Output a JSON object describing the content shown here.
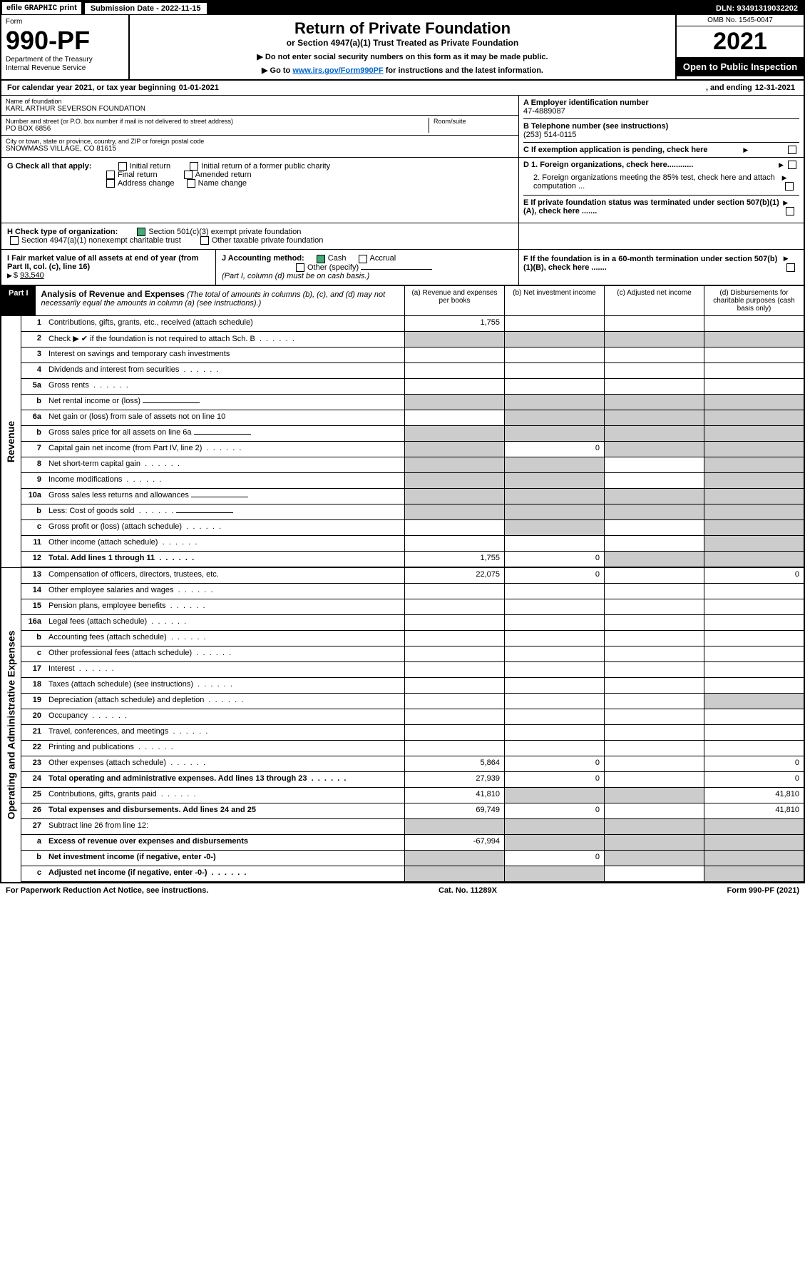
{
  "topbar": {
    "efile": "efile",
    "graphic": "GRAPHIC",
    "print": "print",
    "sub_label": "Submission Date - 2022-11-15",
    "dln": "DLN: 93491319032202"
  },
  "header": {
    "form_word": "Form",
    "form_num": "990-PF",
    "dept1": "Department of the Treasury",
    "dept2": "Internal Revenue Service",
    "title": "Return of Private Foundation",
    "subtitle": "or Section 4947(a)(1) Trust Treated as Private Foundation",
    "note1": "▶ Do not enter social security numbers on this form as it may be made public.",
    "note2_pre": "▶ Go to ",
    "note2_link": "www.irs.gov/Form990PF",
    "note2_post": " for instructions and the latest information.",
    "omb": "OMB No. 1545-0047",
    "year": "2021",
    "open": "Open to Public Inspection"
  },
  "cal": {
    "pre": "For calendar year 2021, or tax year beginning ",
    "begin": "01-01-2021",
    "mid": ", and ending ",
    "end": "12-31-2021"
  },
  "name": {
    "name_lab": "Name of foundation",
    "name_val": "KARL ARTHUR SEVERSON FOUNDATION",
    "addr_lab": "Number and street (or P.O. box number if mail is not delivered to street address)",
    "addr_val": "PO BOX 6856",
    "room_lab": "Room/suite",
    "city_lab": "City or town, state or province, country, and ZIP or foreign postal code",
    "city_val": "SNOWMASS VILLAGE, CO  81615",
    "a_lab": "A Employer identification number",
    "a_val": "47-4889087",
    "b_lab": "B Telephone number (see instructions)",
    "b_val": "(253) 514-0115",
    "c_lab": "C If exemption application is pending, check here"
  },
  "g": {
    "lab": "G Check all that apply:",
    "o1": "Initial return",
    "o2": "Initial return of a former public charity",
    "o3": "Final return",
    "o4": "Amended return",
    "o5": "Address change",
    "o6": "Name change",
    "d1": "D 1. Foreign organizations, check here............",
    "d2": "2. Foreign organizations meeting the 85% test, check here and attach computation ...",
    "e": "E  If private foundation status was terminated under section 507(b)(1)(A), check here ......."
  },
  "h": {
    "lab": "H Check type of organization:",
    "h1": "Section 501(c)(3) exempt private foundation",
    "h2": "Section 4947(a)(1) nonexempt charitable trust",
    "h3": "Other taxable private foundation"
  },
  "ijk": {
    "i_lab": "I Fair market value of all assets at end of year (from Part II, col. (c), line 16)",
    "i_val": "93,540",
    "j_lab": "J Accounting method:",
    "j1": "Cash",
    "j2": "Accrual",
    "j3": "Other (specify)",
    "j_note": "(Part I, column (d) must be on cash basis.)",
    "f": "F  If the foundation is in a 60-month termination under section 507(b)(1)(B), check here ......."
  },
  "part1": {
    "tab": "Part I",
    "title": "Analysis of Revenue and Expenses",
    "note": " (The total of amounts in columns (b), (c), and (d) may not necessarily equal the amounts in column (a) (see instructions).)",
    "col_a": "(a)  Revenue and expenses per books",
    "col_b": "(b)  Net investment income",
    "col_c": "(c)  Adjusted net income",
    "col_d": "(d)  Disbursements for charitable purposes (cash basis only)"
  },
  "sides": {
    "rev": "Revenue",
    "exp": "Operating and Administrative Expenses"
  },
  "rows": [
    {
      "n": "1",
      "t": "Contributions, gifts, grants, etc., received (attach schedule)",
      "a": "1,755",
      "b": "",
      "c": "",
      "d": "",
      "dg": true
    },
    {
      "n": "2",
      "t": "Check ▶ ✔ if the foundation is not required to attach Sch. B",
      "dots": true,
      "nocell": true
    },
    {
      "n": "3",
      "t": "Interest on savings and temporary cash investments"
    },
    {
      "n": "4",
      "t": "Dividends and interest from securities",
      "dots": true
    },
    {
      "n": "5a",
      "t": "Gross rents",
      "dots": true
    },
    {
      "n": "b",
      "t": "Net rental income or (loss)",
      "underfield": true,
      "bcg": true,
      "ccg": true,
      "dcg": true,
      "acg": true
    },
    {
      "n": "6a",
      "t": "Net gain or (loss) from sale of assets not on line 10",
      "bcg": true,
      "ccg": true,
      "dcg": true
    },
    {
      "n": "b",
      "t": "Gross sales price for all assets on line 6a",
      "underfield": true,
      "acg": true,
      "bcg": true,
      "ccg": true,
      "dcg": true
    },
    {
      "n": "7",
      "t": "Capital gain net income (from Part IV, line 2)",
      "dots": true,
      "acg": true,
      "b": "0",
      "ccg": true,
      "dcg": true
    },
    {
      "n": "8",
      "t": "Net short-term capital gain",
      "dots": true,
      "acg": true,
      "bcg": true,
      "dcg": true
    },
    {
      "n": "9",
      "t": "Income modifications",
      "dots": true,
      "acg": true,
      "bcg": true,
      "dcg": true
    },
    {
      "n": "10a",
      "t": "Gross sales less returns and allowances",
      "underfield": true,
      "acg": true,
      "bcg": true,
      "ccg": true,
      "dcg": true
    },
    {
      "n": "b",
      "t": "Less: Cost of goods sold",
      "dots": true,
      "underfield": true,
      "acg": true,
      "bcg": true,
      "ccg": true,
      "dcg": true
    },
    {
      "n": "c",
      "t": "Gross profit or (loss) (attach schedule)",
      "dots": true,
      "bcg": true,
      "dcg": true
    },
    {
      "n": "11",
      "t": "Other income (attach schedule)",
      "dots": true,
      "dcg": true
    },
    {
      "n": "12",
      "t": "Total. Add lines 1 through 11",
      "dots": true,
      "bold": true,
      "a": "1,755",
      "b": "0",
      "dg": true
    }
  ],
  "exp_rows": [
    {
      "n": "13",
      "t": "Compensation of officers, directors, trustees, etc.",
      "a": "22,075",
      "b": "0",
      "d": "0"
    },
    {
      "n": "14",
      "t": "Other employee salaries and wages",
      "dots": true
    },
    {
      "n": "15",
      "t": "Pension plans, employee benefits",
      "dots": true
    },
    {
      "n": "16a",
      "t": "Legal fees (attach schedule)",
      "dots": true
    },
    {
      "n": "b",
      "t": "Accounting fees (attach schedule)",
      "dots": true
    },
    {
      "n": "c",
      "t": "Other professional fees (attach schedule)",
      "dots": true
    },
    {
      "n": "17",
      "t": "Interest",
      "dots": true
    },
    {
      "n": "18",
      "t": "Taxes (attach schedule) (see instructions)",
      "dots": true
    },
    {
      "n": "19",
      "t": "Depreciation (attach schedule) and depletion",
      "dots": true,
      "dcg": true
    },
    {
      "n": "20",
      "t": "Occupancy",
      "dots": true
    },
    {
      "n": "21",
      "t": "Travel, conferences, and meetings",
      "dots": true
    },
    {
      "n": "22",
      "t": "Printing and publications",
      "dots": true
    },
    {
      "n": "23",
      "t": "Other expenses (attach schedule)",
      "dots": true,
      "a": "5,864",
      "b": "0",
      "d": "0"
    },
    {
      "n": "24",
      "t": "Total operating and administrative expenses. Add lines 13 through 23",
      "dots": true,
      "bold": true,
      "a": "27,939",
      "b": "0",
      "d": "0"
    },
    {
      "n": "25",
      "t": "Contributions, gifts, grants paid",
      "dots": true,
      "a": "41,810",
      "bcg": true,
      "ccg": true,
      "d": "41,810"
    },
    {
      "n": "26",
      "t": "Total expenses and disbursements. Add lines 24 and 25",
      "bold": true,
      "a": "69,749",
      "b": "0",
      "d": "41,810"
    },
    {
      "n": "27",
      "t": "Subtract line 26 from line 12:",
      "acg": true,
      "bcg": true,
      "ccg": true,
      "dcg": true
    },
    {
      "n": "a",
      "t": "Excess of revenue over expenses and disbursements",
      "bold": true,
      "a": "-67,994",
      "bcg": true,
      "ccg": true,
      "dcg": true
    },
    {
      "n": "b",
      "t": "Net investment income (if negative, enter -0-)",
      "bold": true,
      "acg": true,
      "b": "0",
      "ccg": true,
      "dcg": true
    },
    {
      "n": "c",
      "t": "Adjusted net income (if negative, enter -0-)",
      "dots": true,
      "bold": true,
      "acg": true,
      "bcg": true,
      "dcg": true
    }
  ],
  "footer": {
    "left": "For Paperwork Reduction Act Notice, see instructions.",
    "mid": "Cat. No. 11289X",
    "right": "Form 990-PF (2021)"
  },
  "colors": {
    "grey": "#cccccc",
    "link": "#0066cc",
    "check": "#4a7"
  }
}
